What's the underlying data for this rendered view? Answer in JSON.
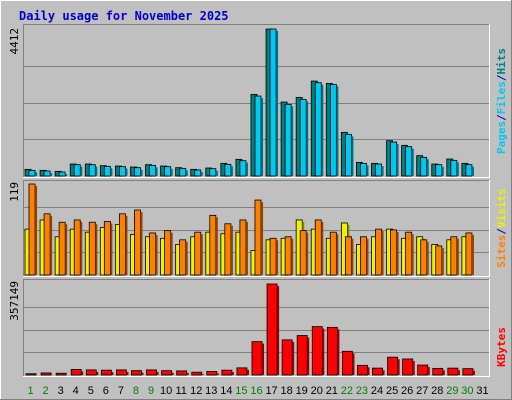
{
  "chart_data": [
    {
      "type": "bar",
      "title": "Daily usage for November 2025",
      "ymax_label": "4412",
      "ylim": [
        0,
        4412
      ],
      "categories": [
        "1",
        "2",
        "3",
        "4",
        "5",
        "6",
        "7",
        "8",
        "9",
        "10",
        "11",
        "12",
        "13",
        "14",
        "15",
        "16",
        "17",
        "18",
        "19",
        "20",
        "21",
        "22",
        "23",
        "24",
        "25",
        "26",
        "27",
        "28",
        "29",
        "30",
        "31"
      ],
      "weekend_days": [
        "1",
        "2",
        "8",
        "9",
        "15",
        "16",
        "22",
        "23",
        "29",
        "30"
      ],
      "legend": [
        "Pages",
        "/",
        "Files",
        "/",
        "Hits"
      ],
      "series": [
        {
          "name": "Hits",
          "color": "#008080",
          "values": [
            200,
            170,
            140,
            360,
            360,
            310,
            300,
            270,
            340,
            300,
            250,
            200,
            240,
            380,
            500,
            2450,
            4412,
            2220,
            2360,
            2850,
            2780,
            1310,
            410,
            380,
            1060,
            920,
            610,
            360,
            510,
            380,
            0
          ]
        },
        {
          "name": "Files",
          "color": "#00c8f0",
          "values": [
            170,
            150,
            120,
            340,
            340,
            290,
            280,
            250,
            320,
            280,
            230,
            180,
            220,
            350,
            460,
            2400,
            4412,
            2150,
            2300,
            2800,
            2750,
            1250,
            380,
            360,
            1020,
            880,
            560,
            340,
            470,
            340,
            0
          ]
        }
      ]
    },
    {
      "type": "bar",
      "ymax_label": "119",
      "ylim": [
        0,
        119
      ],
      "categories": [
        "1",
        "2",
        "3",
        "4",
        "5",
        "6",
        "7",
        "8",
        "9",
        "10",
        "11",
        "12",
        "13",
        "14",
        "15",
        "16",
        "17",
        "18",
        "19",
        "20",
        "21",
        "22",
        "23",
        "24",
        "25",
        "26",
        "27",
        "28",
        "29",
        "30",
        "31"
      ],
      "legend": [
        "Sites",
        "/",
        "Visits"
      ],
      "series": [
        {
          "name": "Visits",
          "color": "#f0f000",
          "values": [
            60,
            72,
            50,
            60,
            56,
            62,
            66,
            53,
            50,
            48,
            40,
            50,
            56,
            54,
            56,
            32,
            46,
            48,
            72,
            60,
            48,
            68,
            40,
            50,
            60,
            48,
            50,
            40,
            46,
            50,
            0
          ]
        },
        {
          "name": "Sites",
          "color": "#ff8000",
          "values": [
            119,
            80,
            69,
            72,
            69,
            70,
            80,
            85,
            55,
            58,
            46,
            56,
            78,
            67,
            72,
            98,
            48,
            50,
            58,
            72,
            56,
            50,
            50,
            60,
            59,
            56,
            46,
            38,
            50,
            55,
            0
          ]
        }
      ]
    },
    {
      "type": "bar",
      "ymax_label": "357149",
      "ylim": [
        0,
        357149
      ],
      "categories": [
        "1",
        "2",
        "3",
        "4",
        "5",
        "6",
        "7",
        "8",
        "9",
        "10",
        "11",
        "12",
        "13",
        "14",
        "15",
        "16",
        "17",
        "18",
        "19",
        "20",
        "21",
        "22",
        "23",
        "24",
        "25",
        "26",
        "27",
        "28",
        "29",
        "30",
        "31"
      ],
      "legend": [
        "KBytes"
      ],
      "series": [
        {
          "name": "KBytes",
          "color": "#ff0000",
          "values": [
            5000,
            8000,
            7000,
            22000,
            20000,
            19000,
            20000,
            17000,
            20000,
            17000,
            16000,
            11000,
            14000,
            19000,
            28000,
            131000,
            357149,
            138000,
            155000,
            190000,
            187000,
            93000,
            38000,
            27000,
            70000,
            63000,
            39000,
            26000,
            27000,
            25000,
            0
          ]
        }
      ]
    }
  ]
}
